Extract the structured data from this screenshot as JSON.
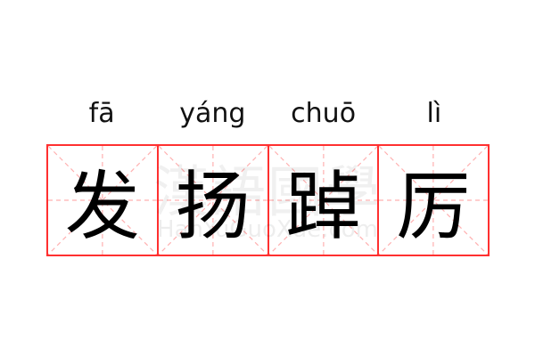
{
  "words": [
    {
      "pinyin": "fā",
      "char": "发"
    },
    {
      "pinyin": "yáng",
      "char": "扬"
    },
    {
      "pinyin": "chuō",
      "char": "踔"
    },
    {
      "pinyin": "lì",
      "char": "厉"
    }
  ],
  "watermark": {
    "chinese": "漢語國學",
    "latin": "HanYuGuoXue.com"
  },
  "colors": {
    "border": "#ff3030",
    "guide": "#ffb0b0",
    "text": "#000000"
  }
}
